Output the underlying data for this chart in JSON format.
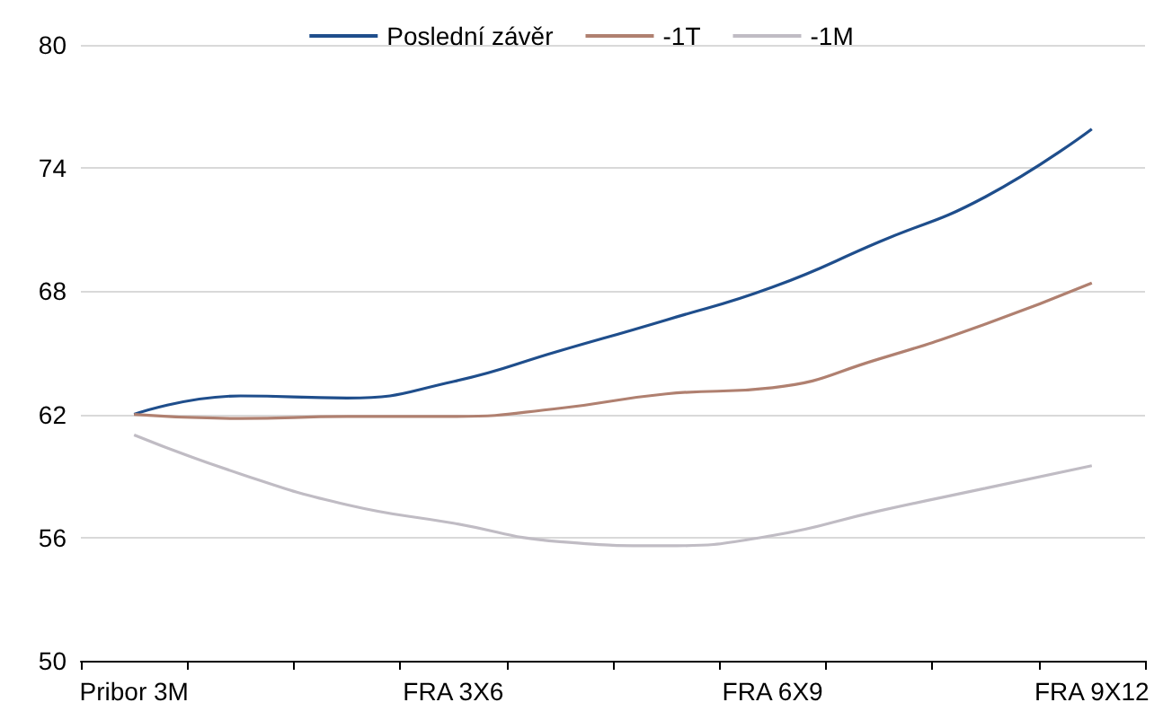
{
  "chart_data": {
    "type": "line",
    "categories": [
      "Pribor 3M",
      null,
      null,
      "FRA 3X6",
      null,
      null,
      "FRA 6X9",
      null,
      null,
      "FRA 9X12"
    ],
    "series": [
      {
        "name": "Poslední závěr",
        "color": "#1f4e8c",
        "values": [
          62,
          62.9,
          62.8,
          63.6,
          65.1,
          66.6,
          68.2,
          70.4,
          72.6,
          75.9
        ]
      },
      {
        "name": "-1T",
        "color": "#b08070",
        "values": [
          62,
          61.8,
          61.9,
          61.9,
          62.3,
          63.0,
          63.3,
          64.7,
          66.4,
          68.4
        ]
      },
      {
        "name": "-1M",
        "color": "#c0bcc4",
        "values": [
          61.0,
          59.1,
          57.6,
          56.7,
          55.8,
          55.6,
          56.1,
          57.3,
          58.4,
          59.5
        ]
      }
    ],
    "ylim": [
      50,
      80
    ],
    "yticks": [
      50,
      56,
      62,
      68,
      74,
      80
    ],
    "grid": "y",
    "legend": "top",
    "marker": "none",
    "line_style": "solid"
  }
}
